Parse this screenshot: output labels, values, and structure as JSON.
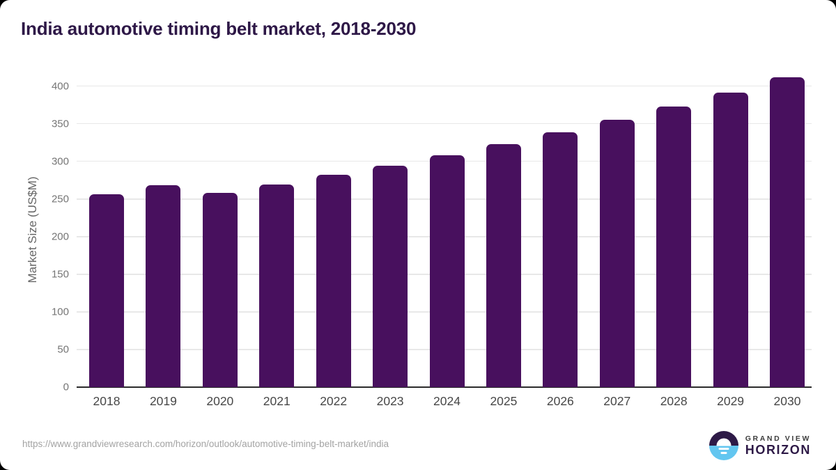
{
  "title": "India automotive timing belt market, 2018-2030",
  "chart_data": {
    "type": "bar",
    "title": "India automotive timing belt market, 2018-2030",
    "categories": [
      "2018",
      "2019",
      "2020",
      "2021",
      "2022",
      "2023",
      "2024",
      "2025",
      "2026",
      "2027",
      "2028",
      "2029",
      "2030"
    ],
    "values": [
      256,
      268,
      258,
      269,
      282,
      294,
      308,
      323,
      339,
      355,
      373,
      391,
      412
    ],
    "xlabel": "",
    "ylabel": "Market Size (US$M)",
    "ylim": [
      0,
      420
    ],
    "yticks": [
      0,
      50,
      100,
      150,
      200,
      250,
      300,
      350,
      400
    ],
    "grid": true,
    "legend_position": "none"
  },
  "footer": {
    "source_url": "https://www.grandviewresearch.com/horizon/outlook/automotive-timing-belt-market/india",
    "logo": {
      "line1": "GRAND VIEW",
      "line2": "HORIZON",
      "icon": "sunrise-horizon-icon"
    }
  },
  "colors": {
    "page_background": "#000000",
    "card_background": "#ffffff",
    "title_text": "#2e1847",
    "bar": "#48105e",
    "gridline": "#e8e8e8",
    "axis_line": "#2b2b2b",
    "y_tick_text": "#757575",
    "x_tick_text": "#474747",
    "url_text": "#a3a3a3",
    "logo_purple": "#2e1a47",
    "logo_blue": "#63c6f0"
  }
}
